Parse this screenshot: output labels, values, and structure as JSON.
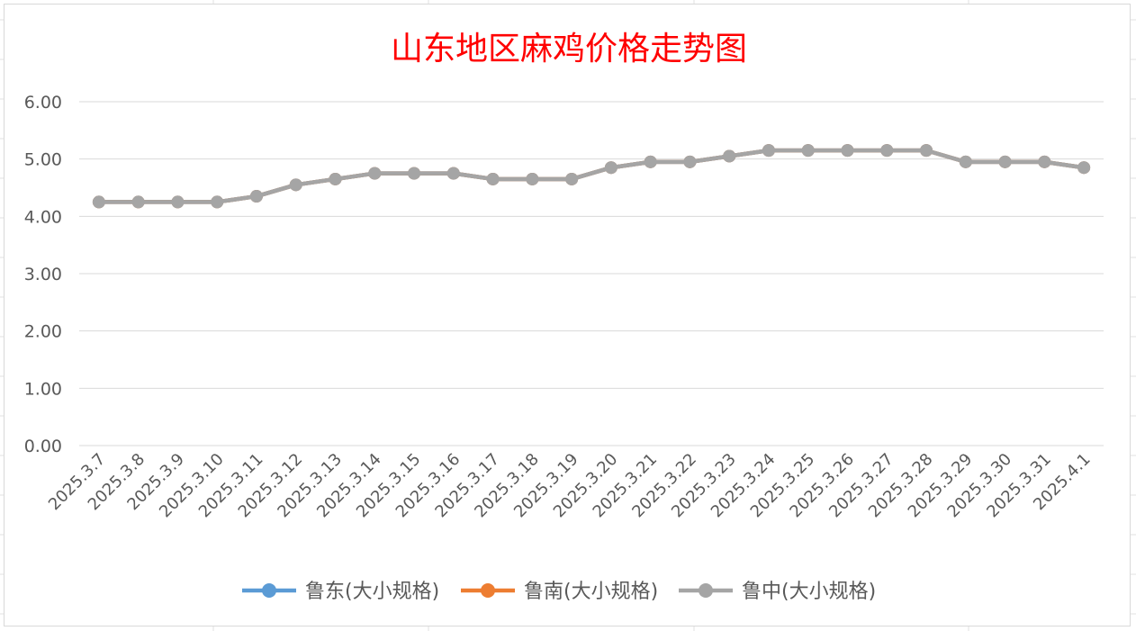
{
  "chart_data": {
    "type": "line",
    "title": "山东地区麻鸡价格走势图",
    "xlabel": "",
    "ylabel": "",
    "ylim": [
      0,
      6
    ],
    "yticks": [
      "0.00",
      "1.00",
      "2.00",
      "3.00",
      "4.00",
      "5.00",
      "6.00"
    ],
    "grid": true,
    "legend_position": "bottom",
    "categories": [
      "2025.3.7",
      "2025.3.8",
      "2025.3.9",
      "2025.3.10",
      "2025.3.11",
      "2025.3.12",
      "2025.3.13",
      "2025.3.14",
      "2025.3.15",
      "2025.3.16",
      "2025.3.17",
      "2025.3.18",
      "2025.3.19",
      "2025.3.20",
      "2025.3.21",
      "2025.3.22",
      "2025.3.23",
      "2025.3.24",
      "2025.3.25",
      "2025.3.26",
      "2025.3.27",
      "2025.3.28",
      "2025.3.29",
      "2025.3.30",
      "2025.3.31",
      "2025.4.1"
    ],
    "series": [
      {
        "name": "鲁东(大小规格)",
        "color": "#5b9bd5",
        "values": [
          4.25,
          4.25,
          4.25,
          4.25,
          4.35,
          4.55,
          4.65,
          4.75,
          4.75,
          4.75,
          4.65,
          4.65,
          4.65,
          4.85,
          4.95,
          4.95,
          5.05,
          5.15,
          5.15,
          5.15,
          5.15,
          5.15,
          4.95,
          4.95,
          4.95,
          4.85
        ]
      },
      {
        "name": "鲁南(大小规格)",
        "color": "#ed7d31",
        "values": [
          4.25,
          4.25,
          4.25,
          4.25,
          4.35,
          4.55,
          4.65,
          4.75,
          4.75,
          4.75,
          4.65,
          4.65,
          4.65,
          4.85,
          4.95,
          4.95,
          5.05,
          5.15,
          5.15,
          5.15,
          5.15,
          5.15,
          4.95,
          4.95,
          4.95,
          4.85
        ]
      },
      {
        "name": "鲁中(大小规格)",
        "color": "#a5a5a5",
        "values": [
          4.25,
          4.25,
          4.25,
          4.25,
          4.35,
          4.55,
          4.65,
          4.75,
          4.75,
          4.75,
          4.65,
          4.65,
          4.65,
          4.85,
          4.95,
          4.95,
          5.05,
          5.15,
          5.15,
          5.15,
          5.15,
          5.15,
          4.95,
          4.95,
          4.95,
          4.85
        ]
      }
    ]
  }
}
